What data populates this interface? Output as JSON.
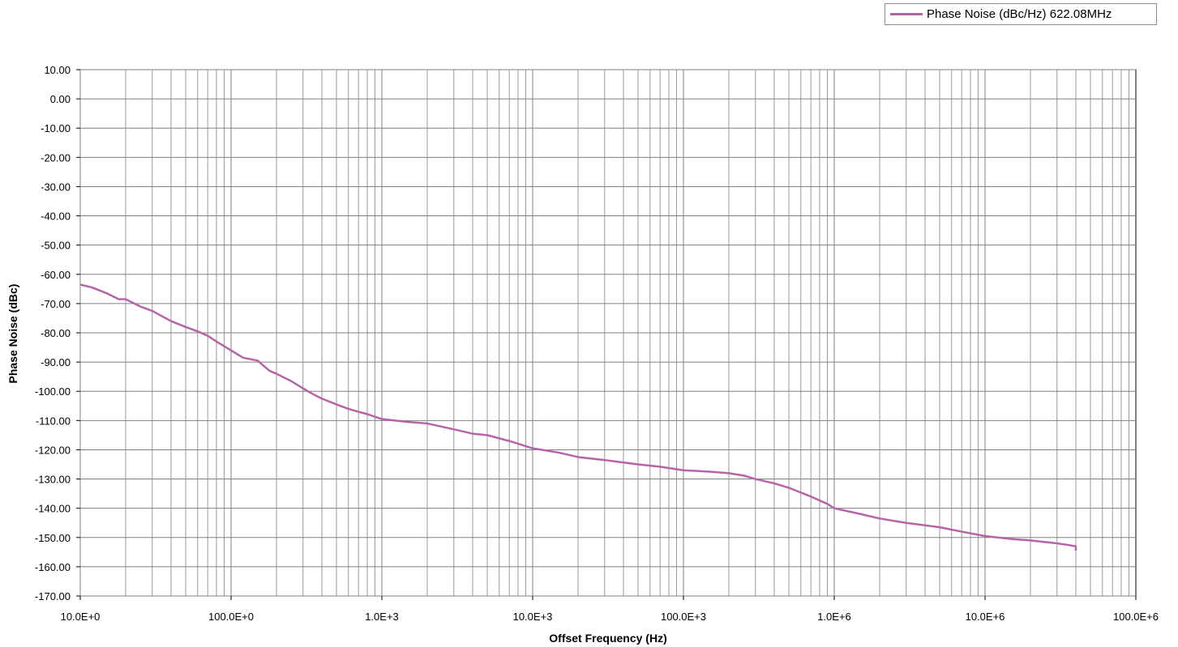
{
  "chart_data": {
    "type": "line",
    "title": "",
    "xlabel": "Offset Frequency (Hz)",
    "ylabel": "Phase Noise (dBc)",
    "xscale": "log",
    "xlim": [
      10,
      100000000
    ],
    "ylim": [
      -170,
      10
    ],
    "x_tick_labels": [
      "10.0E+0",
      "100.0E+0",
      "1.0E+3",
      "10.0E+3",
      "100.0E+3",
      "1.0E+6",
      "10.0E+6",
      "100.0E+6"
    ],
    "y_tick_labels": [
      "10.00",
      "0.00",
      "-10.00",
      "-20.00",
      "-30.00",
      "-40.00",
      "-50.00",
      "-60.00",
      "-70.00",
      "-80.00",
      "-90.00",
      "-100.00",
      "-110.00",
      "-120.00",
      "-130.00",
      "-140.00",
      "-150.00",
      "-160.00",
      "-170.00"
    ],
    "grid": true,
    "legend_position": "top-right",
    "series": [
      {
        "name": "Phase Noise (dBc/Hz) 622.08MHz",
        "color": "#b565a7",
        "x": [
          10,
          12,
          15,
          18,
          20,
          25,
          30,
          40,
          50,
          60,
          70,
          80,
          100,
          120,
          150,
          180,
          200,
          250,
          300,
          350,
          400,
          500,
          600,
          700,
          800,
          1000,
          1500,
          2000,
          3000,
          4000,
          5000,
          7000,
          10000,
          15000,
          20000,
          30000,
          50000,
          70000,
          100000,
          150000,
          200000,
          250000,
          300000,
          400000,
          500000,
          700000,
          900000,
          1000000,
          1500000,
          2000000,
          3000000,
          5000000,
          7000000,
          10000000,
          15000000,
          20000000,
          30000000,
          35000000,
          40000000,
          40000000
        ],
        "y": [
          -63.5,
          -64.5,
          -66.5,
          -68.5,
          -68.5,
          -71,
          -72.5,
          -76,
          -78,
          -79.5,
          -81,
          -83,
          -86,
          -88.5,
          -89.5,
          -93,
          -94,
          -96.5,
          -99,
          -101,
          -102.5,
          -104.5,
          -106,
          -107,
          -107.8,
          -109.5,
          -110.5,
          -111,
          -113,
          -114.5,
          -115,
          -117,
          -119.5,
          -121,
          -122.5,
          -123.5,
          -125,
          -125.8,
          -127,
          -127.5,
          -128,
          -128.8,
          -130,
          -131.5,
          -133,
          -136,
          -138.5,
          -140,
          -142,
          -143.5,
          -145,
          -146.5,
          -148,
          -149.5,
          -150.5,
          -151,
          -152,
          -152.5,
          -153,
          -154.5
        ]
      }
    ]
  }
}
